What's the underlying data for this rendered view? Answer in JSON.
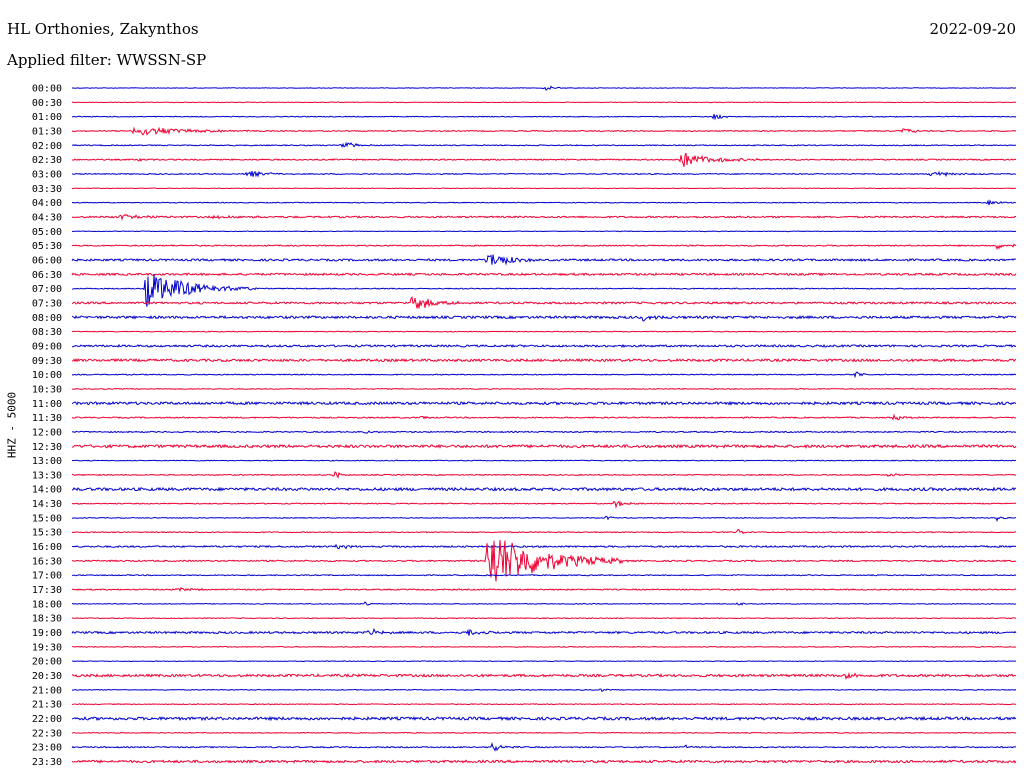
{
  "header": {
    "station": "HL Orthonies, Zakynthos",
    "date": "2022-09-20",
    "filter": "Applied filter: WWSSN-SP"
  },
  "chart_data": {
    "type": "line",
    "title": "HL Orthonies, Zakynthos",
    "ylabel": "HHZ - 5000",
    "colors": [
      "#0000cc",
      "#ee0033"
    ],
    "rows": [
      {
        "time": "00:00",
        "noise": 0.3,
        "events": [
          {
            "x": 0.5,
            "amp": 3,
            "dur": 0.01
          }
        ]
      },
      {
        "time": "00:30",
        "noise": 0.3,
        "events": []
      },
      {
        "time": "01:00",
        "noise": 0.4,
        "events": [
          {
            "x": 0.68,
            "amp": 3,
            "dur": 0.01
          }
        ]
      },
      {
        "time": "01:30",
        "noise": 0.5,
        "events": [
          {
            "x": 0.065,
            "amp": 5,
            "dur": 0.05
          },
          {
            "x": 0.88,
            "amp": 3,
            "dur": 0.01
          }
        ]
      },
      {
        "time": "02:00",
        "noise": 0.5,
        "events": [
          {
            "x": 0.285,
            "amp": 5,
            "dur": 0.012
          }
        ]
      },
      {
        "time": "02:30",
        "noise": 0.6,
        "events": [
          {
            "x": 0.645,
            "amp": 8,
            "dur": 0.03
          },
          {
            "x": 0.07,
            "amp": 2,
            "dur": 0.01
          }
        ]
      },
      {
        "time": "03:00",
        "noise": 0.5,
        "events": [
          {
            "x": 0.185,
            "amp": 4,
            "dur": 0.02
          },
          {
            "x": 0.91,
            "amp": 3,
            "dur": 0.02
          }
        ]
      },
      {
        "time": "03:30",
        "noise": 0.3,
        "events": []
      },
      {
        "time": "04:00",
        "noise": 0.4,
        "events": [
          {
            "x": 0.97,
            "amp": 3,
            "dur": 0.01
          }
        ]
      },
      {
        "time": "04:30",
        "noise": 0.8,
        "events": [
          {
            "x": 0.05,
            "amp": 3,
            "dur": 0.02
          },
          {
            "x": 0.15,
            "amp": 2,
            "dur": 0.03
          }
        ]
      },
      {
        "time": "05:00",
        "noise": 0.3,
        "events": []
      },
      {
        "time": "05:30",
        "noise": 0.6,
        "events": [
          {
            "x": 0.98,
            "amp": 3,
            "dur": 0.02
          }
        ]
      },
      {
        "time": "06:00",
        "noise": 1.0,
        "events": [
          {
            "x": 0.44,
            "amp": 9,
            "dur": 0.02
          }
        ]
      },
      {
        "time": "06:30",
        "noise": 1.0,
        "events": []
      },
      {
        "time": "07:00",
        "noise": 0.5,
        "events": [
          {
            "x": 0.078,
            "amp": 19,
            "dur": 0.04
          }
        ]
      },
      {
        "time": "07:30",
        "noise": 1.0,
        "events": [
          {
            "x": 0.36,
            "amp": 8,
            "dur": 0.02
          }
        ]
      },
      {
        "time": "08:00",
        "noise": 1.2,
        "events": [
          {
            "x": 0.605,
            "amp": 4,
            "dur": 0.01
          }
        ]
      },
      {
        "time": "08:30",
        "noise": 0.4,
        "events": []
      },
      {
        "time": "09:00",
        "noise": 1.0,
        "events": []
      },
      {
        "time": "09:30",
        "noise": 1.2,
        "events": []
      },
      {
        "time": "10:00",
        "noise": 0.5,
        "events": [
          {
            "x": 0.83,
            "amp": 4,
            "dur": 0.005
          }
        ]
      },
      {
        "time": "10:30",
        "noise": 0.4,
        "events": []
      },
      {
        "time": "11:00",
        "noise": 1.3,
        "events": []
      },
      {
        "time": "11:30",
        "noise": 0.6,
        "events": [
          {
            "x": 0.37,
            "amp": 3,
            "dur": 0.005
          },
          {
            "x": 0.87,
            "amp": 3,
            "dur": 0.01
          }
        ]
      },
      {
        "time": "12:00",
        "noise": 0.6,
        "events": [
          {
            "x": 0.31,
            "amp": 2,
            "dur": 0.01
          }
        ]
      },
      {
        "time": "12:30",
        "noise": 1.4,
        "events": []
      },
      {
        "time": "13:00",
        "noise": 0.4,
        "events": []
      },
      {
        "time": "13:30",
        "noise": 0.5,
        "events": [
          {
            "x": 0.278,
            "amp": 4,
            "dur": 0.006
          },
          {
            "x": 0.865,
            "amp": 2,
            "dur": 0.01
          }
        ]
      },
      {
        "time": "14:00",
        "noise": 1.4,
        "events": []
      },
      {
        "time": "14:30",
        "noise": 0.5,
        "events": [
          {
            "x": 0.575,
            "amp": 4,
            "dur": 0.01
          }
        ]
      },
      {
        "time": "15:00",
        "noise": 0.4,
        "events": [
          {
            "x": 0.565,
            "amp": 3,
            "dur": 0.005
          },
          {
            "x": 0.98,
            "amp": 3,
            "dur": 0.005
          }
        ]
      },
      {
        "time": "15:30",
        "noise": 0.5,
        "events": [
          {
            "x": 0.705,
            "amp": 3,
            "dur": 0.005
          }
        ]
      },
      {
        "time": "16:00",
        "noise": 0.8,
        "events": [
          {
            "x": 0.28,
            "amp": 2,
            "dur": 0.02
          }
        ]
      },
      {
        "time": "16:30",
        "noise": 0.7,
        "events": [
          {
            "x": 0.44,
            "amp": 33,
            "dur": 0.05
          }
        ]
      },
      {
        "time": "17:00",
        "noise": 0.5,
        "events": []
      },
      {
        "time": "17:30",
        "noise": 0.6,
        "events": [
          {
            "x": 0.11,
            "amp": 2,
            "dur": 0.02
          }
        ]
      },
      {
        "time": "18:00",
        "noise": 0.4,
        "events": [
          {
            "x": 0.31,
            "amp": 2,
            "dur": 0.005
          },
          {
            "x": 0.705,
            "amp": 2,
            "dur": 0.005
          }
        ]
      },
      {
        "time": "18:30",
        "noise": 0.4,
        "events": []
      },
      {
        "time": "19:00",
        "noise": 1.0,
        "events": [
          {
            "x": 0.315,
            "amp": 4,
            "dur": 0.01
          },
          {
            "x": 0.42,
            "amp": 4,
            "dur": 0.01
          }
        ]
      },
      {
        "time": "19:30",
        "noise": 0.4,
        "events": []
      },
      {
        "time": "20:00",
        "noise": 0.3,
        "events": []
      },
      {
        "time": "20:30",
        "noise": 1.2,
        "events": [
          {
            "x": 0.82,
            "amp": 4,
            "dur": 0.01
          }
        ]
      },
      {
        "time": "21:00",
        "noise": 0.4,
        "events": [
          {
            "x": 0.56,
            "amp": 2,
            "dur": 0.005
          }
        ]
      },
      {
        "time": "21:30",
        "noise": 0.4,
        "events": []
      },
      {
        "time": "22:00",
        "noise": 1.4,
        "events": []
      },
      {
        "time": "22:30",
        "noise": 0.4,
        "events": []
      },
      {
        "time": "23:00",
        "noise": 0.6,
        "events": [
          {
            "x": 0.445,
            "amp": 5,
            "dur": 0.01
          },
          {
            "x": 0.65,
            "amp": 2,
            "dur": 0.005
          }
        ]
      },
      {
        "time": "23:30",
        "noise": 1.2,
        "events": []
      }
    ]
  }
}
